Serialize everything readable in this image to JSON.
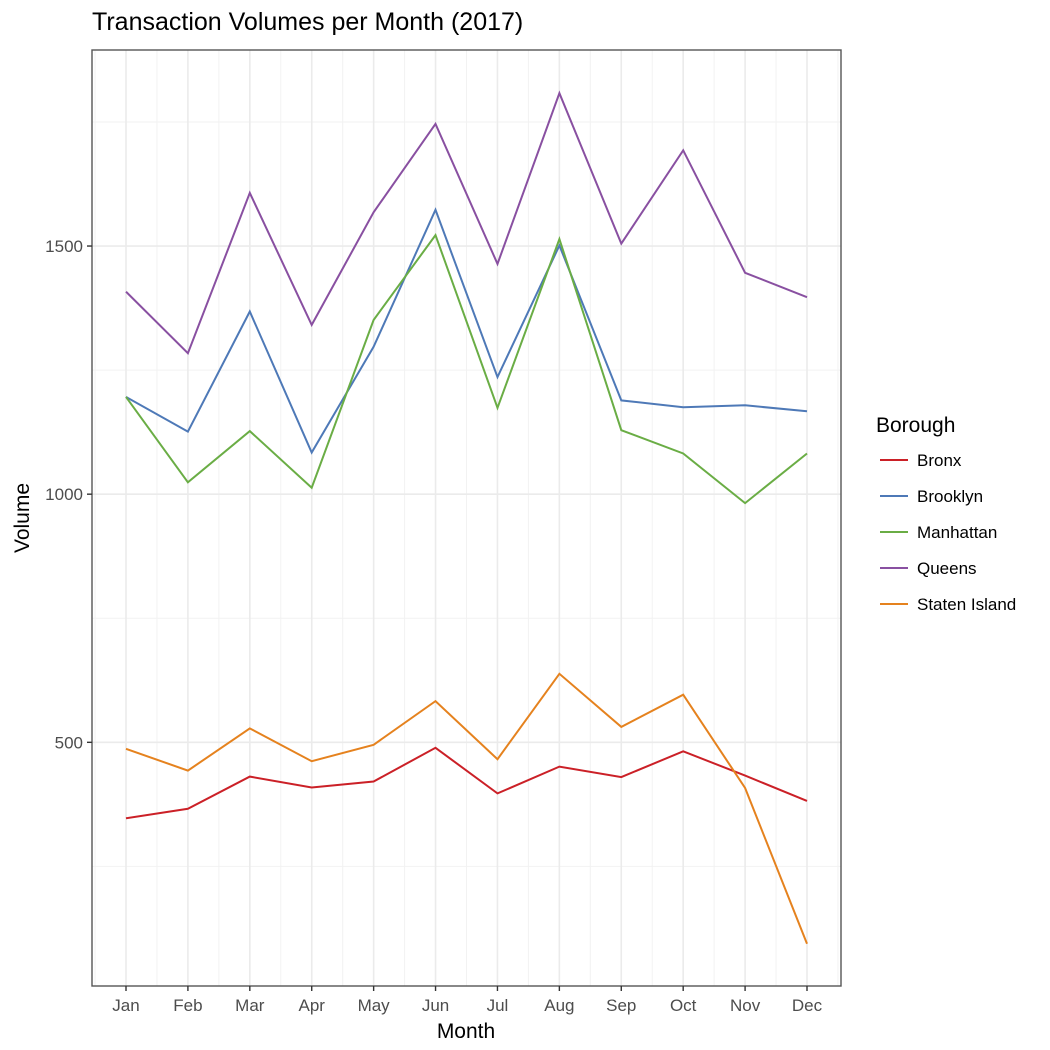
{
  "chart_data": {
    "type": "line",
    "title": "Transaction Volumes per Month (2017)",
    "xlabel": "Month",
    "ylabel": "Volume",
    "categories": [
      "Jan",
      "Feb",
      "Mar",
      "Apr",
      "May",
      "Jun",
      "Jul",
      "Aug",
      "Sep",
      "Oct",
      "Nov",
      "Dec"
    ],
    "yticks": [
      500,
      1000,
      1500
    ],
    "ytick_labels": [
      "500",
      "1000",
      "1500"
    ],
    "yminor": [
      250,
      750,
      1250,
      1750
    ],
    "ylim": [
      9,
      1895
    ],
    "grid": true,
    "legend": {
      "title": "Borough",
      "placement": "right"
    },
    "series": [
      {
        "name": "Bronx",
        "color": "#cb2027",
        "values": [
          347,
          366,
          431,
          409,
          421,
          489,
          397,
          451,
          430,
          482,
          433,
          382
        ]
      },
      {
        "name": "Brooklyn",
        "color": "#4e79b7",
        "values": [
          1196,
          1126,
          1368,
          1084,
          1297,
          1573,
          1236,
          1501,
          1189,
          1175,
          1179,
          1167
        ]
      },
      {
        "name": "Manhattan",
        "color": "#6aad45",
        "values": [
          1196,
          1024,
          1127,
          1013,
          1351,
          1522,
          1174,
          1514,
          1129,
          1082,
          982,
          1082
        ]
      },
      {
        "name": "Queens",
        "color": "#8950a1",
        "values": [
          1408,
          1284,
          1607,
          1341,
          1568,
          1746,
          1464,
          1808,
          1505,
          1693,
          1446,
          1397
        ]
      },
      {
        "name": "Staten Island",
        "color": "#e5821e",
        "values": [
          487,
          443,
          528,
          462,
          495,
          583,
          466,
          638,
          531,
          596,
          408,
          94
        ]
      }
    ]
  }
}
